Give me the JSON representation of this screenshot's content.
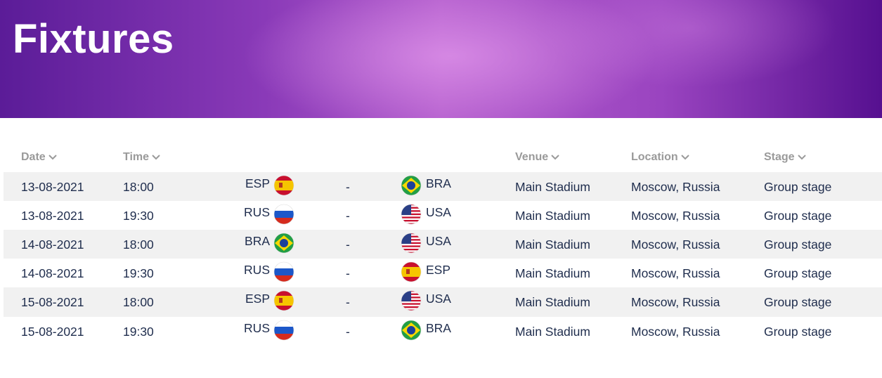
{
  "header": {
    "title": "Fixtures"
  },
  "table": {
    "columns": {
      "date": "Date",
      "time": "Time",
      "venue": "Venue",
      "location": "Location",
      "stage": "Stage"
    },
    "rows": [
      {
        "date": "13-08-2021",
        "time": "18:00",
        "home": "ESP",
        "score": "-",
        "away": "BRA",
        "venue": "Main Stadium",
        "location": "Moscow, Russia",
        "stage": "Group stage"
      },
      {
        "date": "13-08-2021",
        "time": "19:30",
        "home": "RUS",
        "score": "-",
        "away": "USA",
        "venue": "Main Stadium",
        "location": "Moscow, Russia",
        "stage": "Group stage"
      },
      {
        "date": "14-08-2021",
        "time": "18:00",
        "home": "BRA",
        "score": "-",
        "away": "USA",
        "venue": "Main Stadium",
        "location": "Moscow, Russia",
        "stage": "Group stage"
      },
      {
        "date": "14-08-2021",
        "time": "19:30",
        "home": "RUS",
        "score": "-",
        "away": "ESP",
        "venue": "Main Stadium",
        "location": "Moscow, Russia",
        "stage": "Group stage"
      },
      {
        "date": "15-08-2021",
        "time": "18:00",
        "home": "ESP",
        "score": "-",
        "away": "USA",
        "venue": "Main Stadium",
        "location": "Moscow, Russia",
        "stage": "Group stage"
      },
      {
        "date": "15-08-2021",
        "time": "19:30",
        "home": "RUS",
        "score": "-",
        "away": "BRA",
        "venue": "Main Stadium",
        "location": "Moscow, Russia",
        "stage": "Group stage"
      }
    ]
  }
}
